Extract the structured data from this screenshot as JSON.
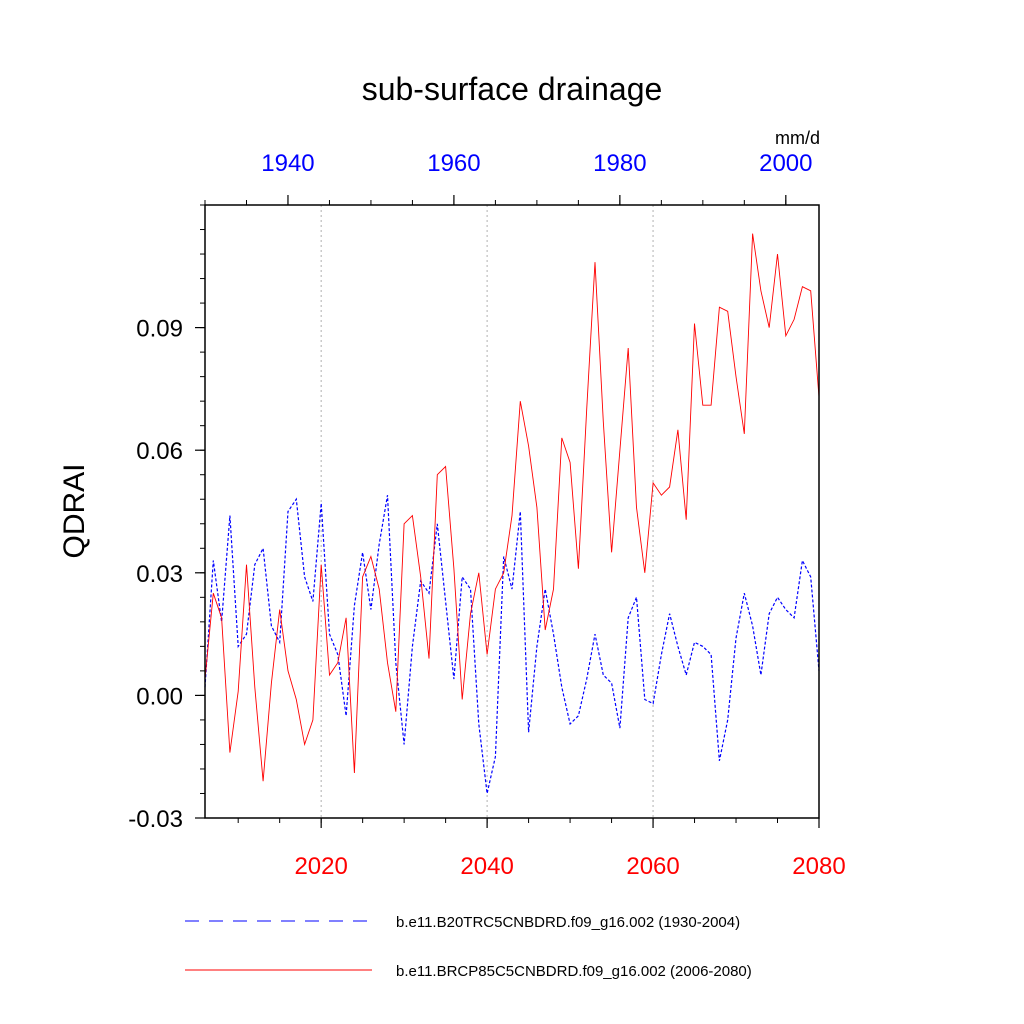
{
  "chart_data": {
    "type": "line",
    "title": "sub-surface drainage",
    "ylabel": "QDRAI",
    "units": "mm/d",
    "ylim": [
      -0.03,
      0.12
    ],
    "yticks": [
      -0.03,
      0.0,
      0.03,
      0.06,
      0.09
    ],
    "ytick_labels": [
      "-0.03",
      "0.00",
      "0.03",
      "0.06",
      "0.09"
    ],
    "bottom_axis": {
      "range": [
        2006,
        2080
      ],
      "ticks": [
        2020,
        2040,
        2060,
        2080
      ],
      "tick_labels": [
        "2020",
        "2040",
        "2060",
        "2080"
      ],
      "color": "#ff0000"
    },
    "top_axis": {
      "range": [
        1930,
        2004
      ],
      "ticks": [
        1940,
        1960,
        1980,
        2000
      ],
      "tick_labels": [
        "1940",
        "1960",
        "1980",
        "2000"
      ],
      "color": "#0000ff"
    },
    "grid_x": [
      2020,
      2040,
      2060
    ],
    "series": [
      {
        "name": "b.e11.B20TRC5CNBDRD.f09_g16.002 (1930-2004)",
        "color": "#0000ff",
        "style": "dashed",
        "x_start": 1930,
        "values": [
          0.002,
          0.033,
          0.018,
          0.044,
          0.012,
          0.015,
          0.032,
          0.036,
          0.017,
          0.013,
          0.045,
          0.048,
          0.029,
          0.023,
          0.047,
          0.015,
          0.01,
          -0.005,
          0.022,
          0.035,
          0.021,
          0.037,
          0.049,
          0.008,
          -0.012,
          0.012,
          0.028,
          0.025,
          0.042,
          0.023,
          0.004,
          0.029,
          0.026,
          -0.007,
          -0.024,
          -0.015,
          0.034,
          0.026,
          0.045,
          -0.009,
          0.012,
          0.026,
          0.015,
          0.002,
          -0.007,
          -0.005,
          0.004,
          0.015,
          0.005,
          0.003,
          -0.008,
          0.019,
          0.024,
          -0.001,
          -0.002,
          0.01,
          0.02,
          0.012,
          0.005,
          0.013,
          0.012,
          0.01,
          -0.016,
          -0.006,
          0.014,
          0.025,
          0.017,
          0.005,
          0.02,
          0.024,
          0.021,
          0.019,
          0.033,
          0.029,
          0.006
        ]
      },
      {
        "name": "b.e11.BRCP85C5CNBDRD.f09_g16.002 (2006-2080)",
        "color": "#ff0000",
        "style": "solid",
        "x_start": 2006,
        "values": [
          0.004,
          0.025,
          0.019,
          -0.014,
          0.001,
          0.032,
          0.002,
          -0.021,
          0.003,
          0.021,
          0.006,
          -0.001,
          -0.012,
          -0.006,
          0.032,
          0.005,
          0.008,
          0.019,
          -0.019,
          0.029,
          0.034,
          0.026,
          0.008,
          -0.004,
          0.042,
          0.044,
          0.029,
          0.009,
          0.054,
          0.056,
          0.031,
          -0.001,
          0.02,
          0.03,
          0.01,
          0.026,
          0.03,
          0.044,
          0.072,
          0.061,
          0.046,
          0.016,
          0.026,
          0.063,
          0.057,
          0.031,
          0.07,
          0.106,
          0.067,
          0.035,
          0.06,
          0.085,
          0.046,
          0.03,
          0.052,
          0.049,
          0.051,
          0.065,
          0.043,
          0.091,
          0.071,
          0.071,
          0.095,
          0.094,
          0.078,
          0.064,
          0.113,
          0.099,
          0.09,
          0.108,
          0.088,
          0.092,
          0.1,
          0.099,
          0.073
        ]
      }
    ]
  }
}
